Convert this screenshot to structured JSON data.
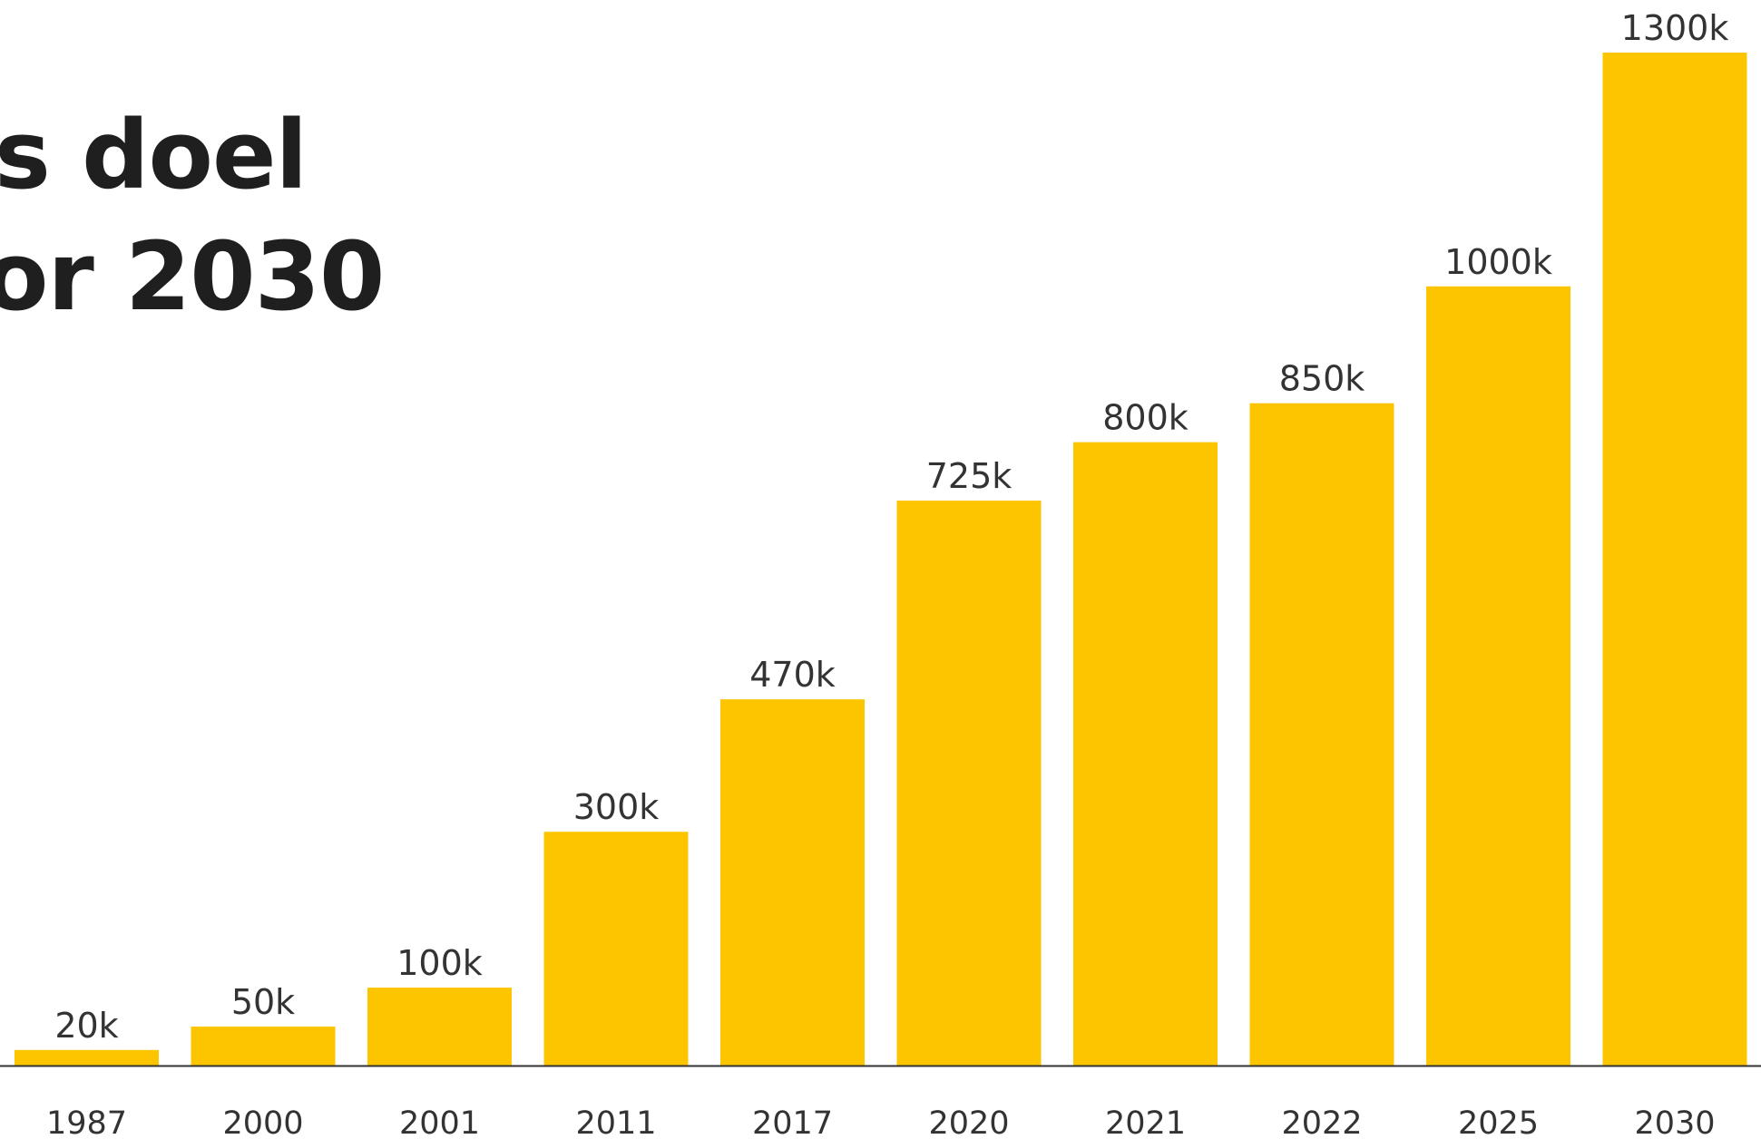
{
  "title_lines": [
    "s doel",
    "or 2030"
  ],
  "chart_data": {
    "type": "bar",
    "categories": [
      "1987",
      "2000",
      "2001",
      "2011",
      "2017",
      "2020",
      "2021",
      "2022",
      "2025",
      "2030"
    ],
    "values": [
      20,
      50,
      100,
      300,
      470,
      725,
      800,
      850,
      1000,
      1300
    ],
    "data_labels": [
      "20k",
      "50k",
      "100k",
      "300k",
      "470k",
      "725k",
      "800k",
      "850k",
      "1000k",
      "1300k"
    ],
    "ylim": [
      0,
      1300
    ],
    "grid": false,
    "bar_color": "#FDC500",
    "axis_color": "#333333",
    "label_color": "#333333"
  }
}
